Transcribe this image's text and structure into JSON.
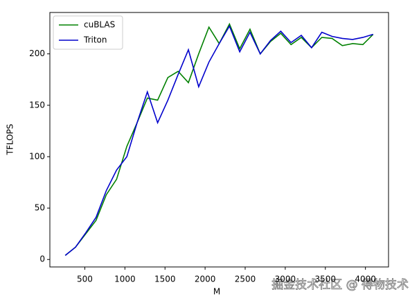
{
  "chart_data": {
    "type": "line",
    "x_label": "M",
    "y_label": "TFLOPS",
    "x": [
      256,
      384,
      512,
      640,
      768,
      896,
      1024,
      1152,
      1280,
      1408,
      1536,
      1664,
      1792,
      1920,
      2048,
      2176,
      2304,
      2432,
      2560,
      2688,
      2816,
      2944,
      3072,
      3200,
      3328,
      3456,
      3584,
      3712,
      3840,
      3968,
      4096
    ],
    "series": [
      {
        "name": "cuBLAS",
        "color": "#008000",
        "values": [
          4,
          12,
          25,
          38,
          63,
          78,
          110,
          133,
          157,
          155,
          177,
          183,
          172,
          200,
          226,
          210,
          229,
          205,
          224,
          200,
          212,
          220,
          209,
          216,
          206,
          216,
          215,
          208,
          210,
          209,
          219
        ]
      },
      {
        "name": "Triton",
        "color": "#0000cc",
        "values": [
          4,
          12,
          26,
          41,
          67,
          87,
          100,
          133,
          163,
          133,
          155,
          180,
          204,
          168,
          192,
          210,
          227,
          202,
          221,
          200,
          213,
          222,
          211,
          218,
          206,
          221,
          217,
          215,
          214,
          216,
          219
        ]
      }
    ],
    "xlim": [
      64,
      4288
    ],
    "xticks": [
      500,
      1000,
      1500,
      2000,
      2500,
      3000,
      3500,
      4000
    ],
    "ylim": [
      -7.25,
      240.25
    ],
    "yticks": [
      0,
      50,
      100,
      150,
      200
    ],
    "grid": false,
    "legend": "upper-left",
    "watermark": "掘金技术社区 @ 得物技术"
  }
}
